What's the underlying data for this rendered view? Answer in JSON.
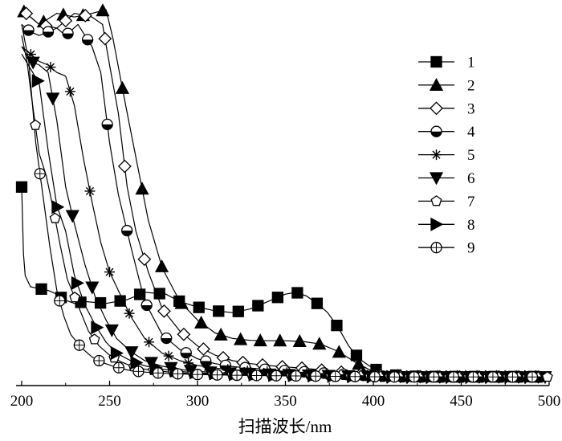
{
  "chart_data": {
    "type": "line",
    "title": "",
    "xlabel": "扫描波长/nm",
    "ylabel": "",
    "xlim": [
      200,
      500
    ],
    "ylim": [
      0,
      1.0
    ],
    "x_ticks": [
      "200",
      "250",
      "300",
      "350",
      "400",
      "450",
      "500"
    ],
    "grid": false,
    "legend_position": "right",
    "series": [
      {
        "name": "1",
        "marker": "square",
        "x": [
          200,
          201,
          202,
          205,
          210,
          215,
          220,
          224,
          230,
          236,
          248,
          260,
          270,
          282,
          290,
          300,
          310,
          320,
          330,
          340,
          350,
          356,
          362,
          368,
          374,
          380,
          386,
          392,
          398,
          404,
          410,
          420,
          440,
          460,
          480,
          500
        ],
        "y": [
          0.52,
          0.34,
          0.28,
          0.25,
          0.245,
          0.24,
          0.23,
          0.215,
          0.205,
          0.21,
          0.205,
          0.215,
          0.235,
          0.23,
          0.21,
          0.195,
          0.185,
          0.18,
          0.19,
          0.21,
          0.23,
          0.235,
          0.225,
          0.205,
          0.18,
          0.14,
          0.09,
          0.055,
          0.035,
          0.02,
          0.012,
          0.008,
          0.007,
          0.007,
          0.007,
          0.007
        ]
      },
      {
        "name": "2",
        "marker": "triangle-up",
        "x": [
          200,
          210,
          220,
          230,
          240,
          248,
          252,
          256,
          260,
          265,
          272,
          280,
          290,
          300,
          310,
          320,
          330,
          340,
          350,
          360,
          370,
          380,
          390,
          400,
          410,
          420,
          440,
          460,
          480,
          500
        ],
        "y": [
          1.0,
          0.96,
          0.99,
          0.98,
          0.99,
          1.0,
          0.92,
          0.82,
          0.72,
          0.6,
          0.43,
          0.3,
          0.21,
          0.16,
          0.125,
          0.11,
          0.105,
          0.104,
          0.104,
          0.102,
          0.095,
          0.075,
          0.045,
          0.02,
          0.01,
          0.007,
          0.006,
          0.006,
          0.006,
          0.006
        ]
      },
      {
        "name": "3",
        "marker": "diamond",
        "x": [
          200,
          210,
          220,
          230,
          240,
          246,
          250,
          255,
          260,
          265,
          272,
          280,
          290,
          300,
          310,
          320,
          330,
          340,
          350,
          360,
          370,
          380,
          390,
          400,
          410,
          420,
          440,
          460,
          480,
          500
        ],
        "y": [
          1.0,
          0.96,
          0.95,
          0.99,
          0.98,
          0.96,
          0.85,
          0.72,
          0.52,
          0.4,
          0.29,
          0.19,
          0.13,
          0.09,
          0.065,
          0.05,
          0.042,
          0.037,
          0.033,
          0.03,
          0.025,
          0.02,
          0.015,
          0.011,
          0.008,
          0.007,
          0.006,
          0.006,
          0.006,
          0.006
        ]
      },
      {
        "name": "4",
        "marker": "half-circle",
        "x": [
          200,
          205,
          210,
          215,
          220,
          225,
          232,
          240,
          245,
          250,
          255,
          262,
          270,
          280,
          290,
          300,
          310,
          320,
          330,
          340,
          350,
          360,
          370,
          380,
          390,
          400,
          410,
          420,
          440,
          460,
          480,
          500
        ],
        "y": [
          0.96,
          0.94,
          0.93,
          0.94,
          0.95,
          0.93,
          0.96,
          0.9,
          0.83,
          0.64,
          0.5,
          0.36,
          0.21,
          0.12,
          0.08,
          0.055,
          0.042,
          0.034,
          0.03,
          0.026,
          0.023,
          0.02,
          0.017,
          0.014,
          0.011,
          0.009,
          0.007,
          0.006,
          0.006,
          0.006,
          0.006,
          0.006
        ]
      },
      {
        "name": "5",
        "marker": "star",
        "x": [
          200,
          205,
          210,
          215,
          220,
          225,
          230,
          235,
          240,
          245,
          250,
          256,
          262,
          270,
          280,
          290,
          300,
          310,
          320,
          330,
          340,
          350,
          360,
          370,
          380,
          390,
          400,
          410,
          420,
          440,
          460,
          480,
          500
        ],
        "y": [
          0.9,
          0.88,
          0.86,
          0.85,
          0.83,
          0.82,
          0.74,
          0.6,
          0.48,
          0.37,
          0.29,
          0.23,
          0.17,
          0.11,
          0.07,
          0.05,
          0.037,
          0.03,
          0.025,
          0.022,
          0.02,
          0.018,
          0.016,
          0.014,
          0.012,
          0.01,
          0.008,
          0.007,
          0.006,
          0.006,
          0.006,
          0.006,
          0.006
        ]
      },
      {
        "name": "6",
        "marker": "triangle-down",
        "x": [
          200,
          205,
          210,
          215,
          220,
          225,
          230,
          236,
          242,
          248,
          254,
          262,
          270,
          280,
          290,
          300,
          310,
          320,
          330,
          340,
          350,
          360,
          370,
          380,
          390,
          400,
          420,
          440,
          460,
          480,
          500
        ],
        "y": [
          0.9,
          0.86,
          0.85,
          0.83,
          0.7,
          0.52,
          0.42,
          0.31,
          0.22,
          0.16,
          0.11,
          0.075,
          0.05,
          0.035,
          0.026,
          0.021,
          0.018,
          0.016,
          0.014,
          0.013,
          0.012,
          0.011,
          0.01,
          0.009,
          0.008,
          0.007,
          0.006,
          0.006,
          0.006,
          0.006,
          0.006
        ]
      },
      {
        "name": "7",
        "marker": "pentagon",
        "x": [
          200,
          203,
          206,
          210,
          214,
          218,
          222,
          226,
          232,
          238,
          244,
          250,
          256,
          262,
          270,
          280,
          290,
          300,
          310,
          320,
          330,
          340,
          360,
          380,
          400,
          420,
          440,
          460,
          480,
          500
        ],
        "y": [
          0.93,
          0.86,
          0.75,
          0.61,
          0.55,
          0.46,
          0.36,
          0.27,
          0.2,
          0.13,
          0.09,
          0.065,
          0.048,
          0.036,
          0.027,
          0.021,
          0.017,
          0.015,
          0.013,
          0.012,
          0.011,
          0.01,
          0.009,
          0.008,
          0.007,
          0.006,
          0.006,
          0.006,
          0.006,
          0.006
        ]
      },
      {
        "name": "8",
        "marker": "triangle-right",
        "x": [
          200,
          205,
          210,
          215,
          220,
          225,
          230,
          236,
          242,
          248,
          254,
          262,
          270,
          280,
          290,
          300,
          310,
          320,
          330,
          340,
          360,
          380,
          400,
          420,
          440,
          460,
          480,
          500
        ],
        "y": [
          0.88,
          0.84,
          0.8,
          0.62,
          0.47,
          0.4,
          0.28,
          0.2,
          0.145,
          0.1,
          0.07,
          0.05,
          0.036,
          0.027,
          0.021,
          0.017,
          0.015,
          0.013,
          0.012,
          0.011,
          0.01,
          0.008,
          0.007,
          0.006,
          0.006,
          0.006,
          0.006,
          0.006
        ]
      },
      {
        "name": "9",
        "marker": "crossed-circle",
        "x": [
          200,
          204,
          208,
          212,
          216,
          220,
          224,
          228,
          234,
          240,
          246,
          252,
          260,
          268,
          276,
          286,
          296,
          306,
          316,
          330,
          350,
          370,
          390,
          410,
          430,
          450,
          470,
          500
        ],
        "y": [
          0.96,
          0.86,
          0.64,
          0.5,
          0.36,
          0.24,
          0.17,
          0.12,
          0.085,
          0.06,
          0.045,
          0.035,
          0.025,
          0.02,
          0.017,
          0.015,
          0.013,
          0.012,
          0.011,
          0.01,
          0.009,
          0.008,
          0.007,
          0.006,
          0.006,
          0.006,
          0.006,
          0.006
        ]
      }
    ]
  }
}
